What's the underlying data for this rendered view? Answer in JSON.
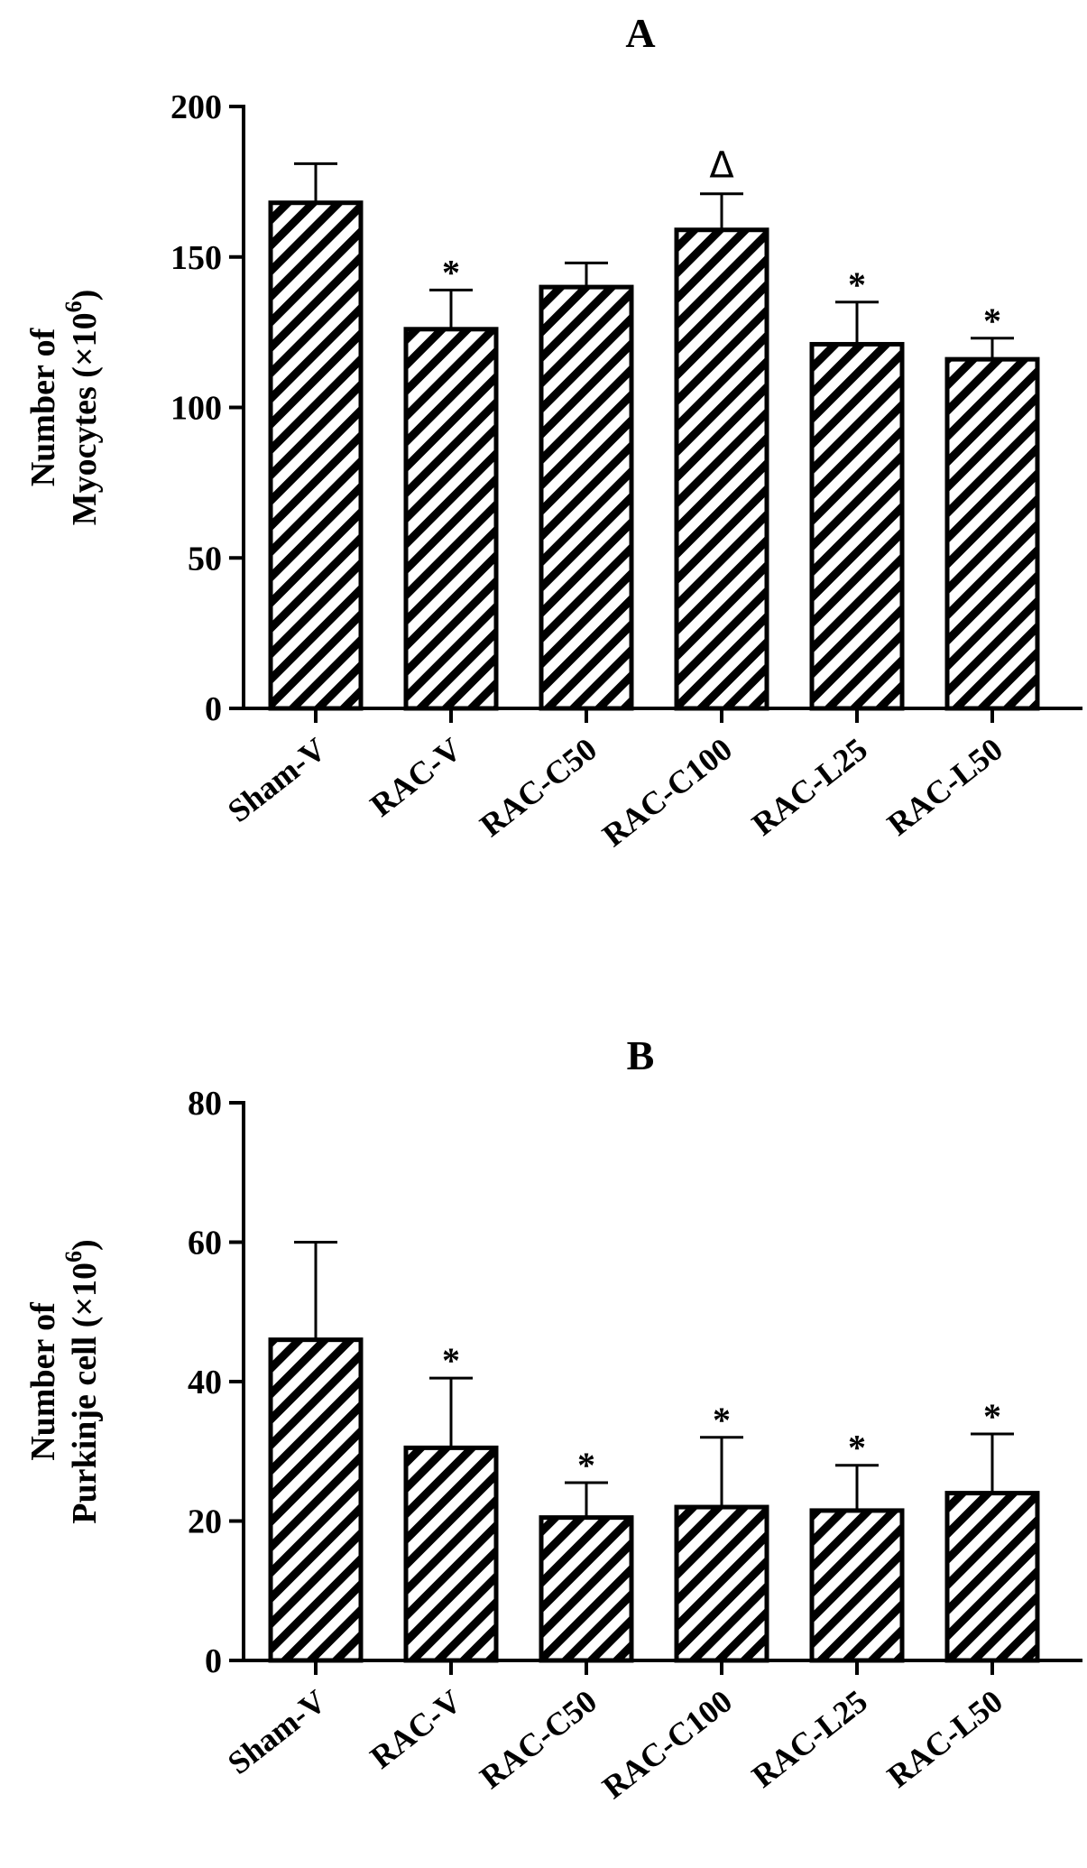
{
  "chart_data": [
    {
      "panel": "A",
      "type": "bar",
      "title": "A",
      "ylabel_line1": "Number of",
      "ylabel_line2": "Myocytes (×10",
      "ylabel_sup": "6",
      "ylabel_close": ")",
      "categories": [
        "Sham-V",
        "RAC-V",
        "RAC-C50",
        "RAC-C100",
        "RAC-L25",
        "RAC-L50"
      ],
      "values": [
        168,
        126,
        140,
        159,
        121,
        116
      ],
      "errors": [
        13,
        13,
        8,
        12,
        14,
        7
      ],
      "annotations": [
        "",
        "*",
        "",
        "Δ",
        "*",
        "*"
      ],
      "ylim": [
        0,
        200
      ],
      "yticks": [
        0,
        50,
        100,
        150,
        200
      ],
      "bar_fill": "diagonal-hatch",
      "bar_color": "#000000"
    },
    {
      "panel": "B",
      "type": "bar",
      "title": "B",
      "ylabel_line1": "Number of",
      "ylabel_line2": "Purkinje cell (×10",
      "ylabel_sup": "6",
      "ylabel_close": ")",
      "categories": [
        "Sham-V",
        "RAC-V",
        "RAC-C50",
        "RAC-C100",
        "RAC-L25",
        "RAC-L50"
      ],
      "values": [
        46,
        30.5,
        20.5,
        22,
        21.5,
        24
      ],
      "errors": [
        14,
        10,
        5,
        10,
        6.5,
        8.5
      ],
      "annotations": [
        "",
        "*",
        "*",
        "*",
        "*",
        "*"
      ],
      "ylim": [
        0,
        80
      ],
      "yticks": [
        0,
        20,
        40,
        60,
        80
      ],
      "bar_fill": "diagonal-hatch",
      "bar_color": "#000000"
    }
  ]
}
